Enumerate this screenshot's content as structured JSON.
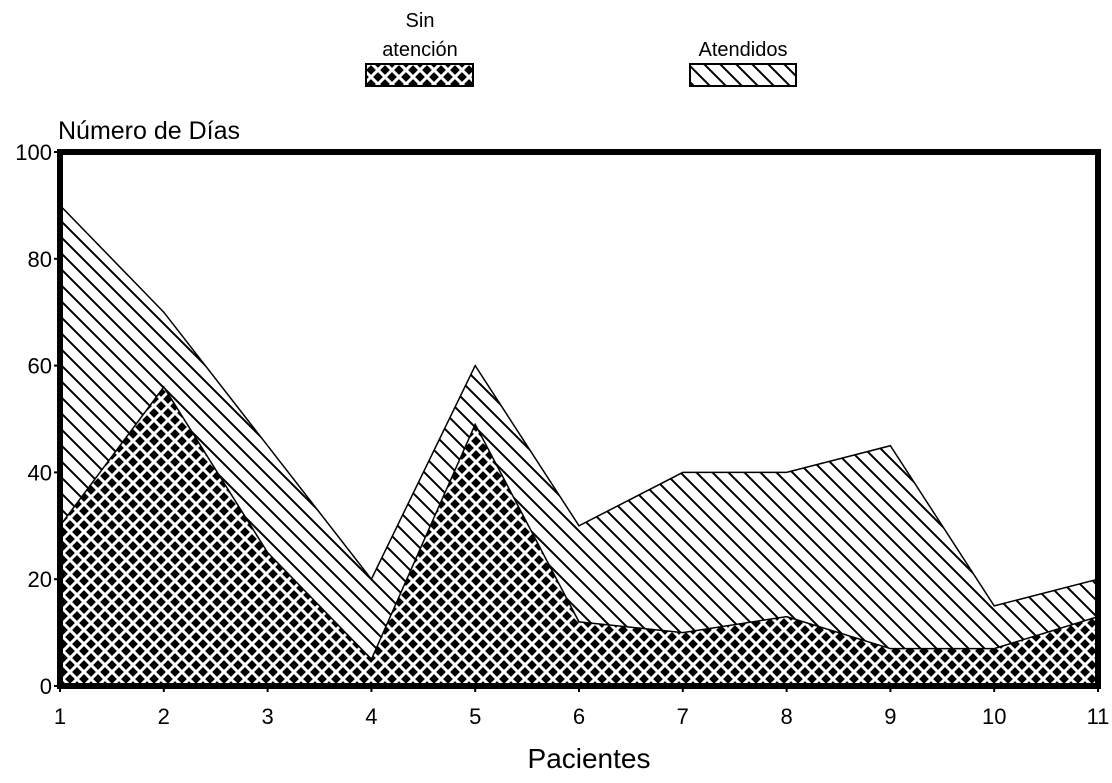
{
  "chart_data": {
    "type": "area",
    "stacked": false,
    "xlabel": "Pacientes",
    "ylabel": "Número de Días",
    "ylim": [
      0,
      100
    ],
    "xlim": [
      1,
      11
    ],
    "yticks": [
      0,
      20,
      40,
      60,
      80,
      100
    ],
    "x": [
      1,
      2,
      3,
      4,
      5,
      6,
      7,
      8,
      9,
      10,
      11
    ],
    "grid": false,
    "legend_position": "top",
    "series": [
      {
        "name": "Sin\natención",
        "pattern": "crosshatch",
        "values": [
          30,
          56,
          25,
          5,
          49,
          12,
          10,
          13,
          7,
          7,
          13
        ]
      },
      {
        "name": "Atendidos",
        "pattern": "diagonal",
        "values": [
          90,
          70,
          45,
          20,
          60,
          30,
          40,
          40,
          45,
          15,
          20
        ]
      }
    ],
    "colors": {
      "ink": "#000000",
      "paper": "#ffffff"
    }
  }
}
